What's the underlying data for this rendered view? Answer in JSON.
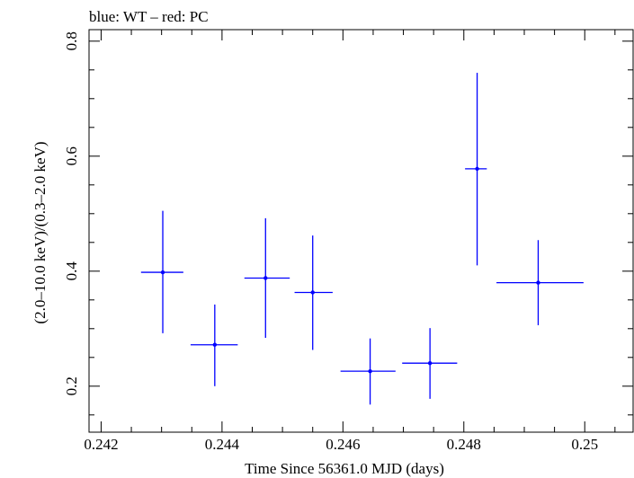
{
  "chart_data": {
    "type": "scatter",
    "title": "blue: WT – red: PC",
    "xlabel": "Time Since 56361.0 MJD (days)",
    "ylabel": "(2.0–10.0 keV)/(0.3–2.0 keV)",
    "xlim": [
      0.2418,
      0.2508
    ],
    "ylim": [
      0.12,
      0.82
    ],
    "xticks": [
      {
        "value": 0.242,
        "label": "0.242"
      },
      {
        "value": 0.244,
        "label": "0.244"
      },
      {
        "value": 0.246,
        "label": "0.246"
      },
      {
        "value": 0.248,
        "label": "0.248"
      },
      {
        "value": 0.25,
        "label": "0.25"
      }
    ],
    "yticks": [
      {
        "value": 0.2,
        "label": "0.2"
      },
      {
        "value": 0.4,
        "label": "0.4"
      },
      {
        "value": 0.6,
        "label": "0.6"
      },
      {
        "value": 0.8,
        "label": "0.8"
      }
    ],
    "grid": false,
    "series": [
      {
        "color": "#0000ff",
        "points": [
          {
            "x": 0.24302,
            "y": 0.398,
            "xlo": 0.24266,
            "xhi": 0.24336,
            "ylo": 0.292,
            "yhi": 0.505
          },
          {
            "x": 0.24388,
            "y": 0.272,
            "xlo": 0.24348,
            "xhi": 0.24426,
            "ylo": 0.2,
            "yhi": 0.342
          },
          {
            "x": 0.24472,
            "y": 0.388,
            "xlo": 0.24437,
            "xhi": 0.24512,
            "ylo": 0.284,
            "yhi": 0.492
          },
          {
            "x": 0.2455,
            "y": 0.363,
            "xlo": 0.2452,
            "xhi": 0.24583,
            "ylo": 0.263,
            "yhi": 0.462
          },
          {
            "x": 0.24645,
            "y": 0.226,
            "xlo": 0.24596,
            "xhi": 0.24687,
            "ylo": 0.168,
            "yhi": 0.283
          },
          {
            "x": 0.24744,
            "y": 0.24,
            "xlo": 0.24698,
            "xhi": 0.24789,
            "ylo": 0.178,
            "yhi": 0.301
          },
          {
            "x": 0.24822,
            "y": 0.578,
            "xlo": 0.24802,
            "xhi": 0.24838,
            "ylo": 0.41,
            "yhi": 0.745
          },
          {
            "x": 0.24923,
            "y": 0.38,
            "xlo": 0.24854,
            "xhi": 0.24998,
            "ylo": 0.306,
            "yhi": 0.454
          }
        ]
      }
    ]
  }
}
